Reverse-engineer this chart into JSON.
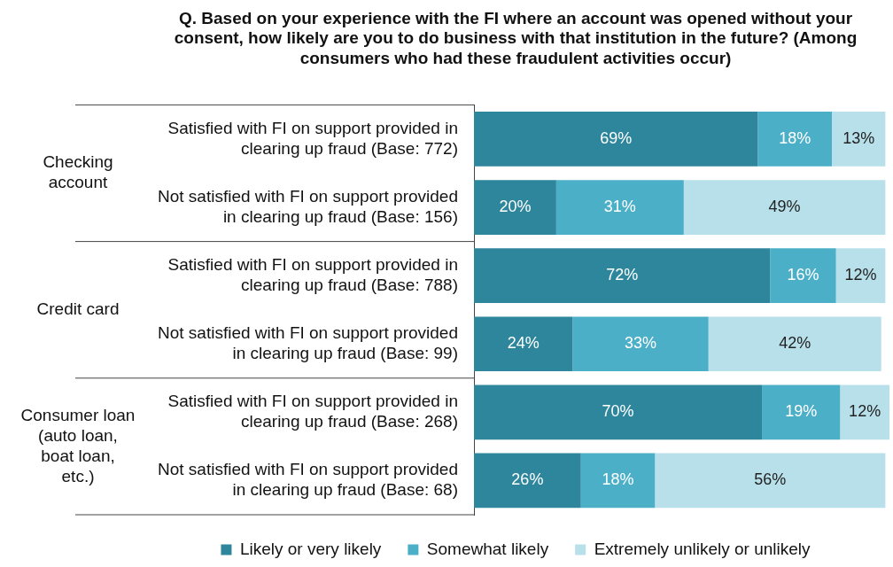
{
  "chart_data": {
    "type": "bar",
    "orientation": "horizontal",
    "stacked": true,
    "title": "Q. Based on your experience with the FI where an account was opened without your consent, how likely are you to do business with that institution in the future? (Among consumers who had these fraudulent activities occur)",
    "categories": [
      "Satisfied with FI on support provided in clearing up fraud (Base: 772)",
      "Not satisfied with FI on support provided in clearing up fraud (Base: 156)",
      "Satisfied with FI on support provided in clearing up fraud (Base: 788)",
      "Not satisfied with FI on support provided in clearing up fraud (Base: 99)",
      "Satisfied with FI on support provided in clearing up fraud (Base: 268)",
      "Not satisfied with FI on support provided in clearing up fraud (Base: 68)"
    ],
    "series": [
      {
        "name": "Likely or very likely",
        "color": "#2e869c",
        "values": [
          69,
          20,
          72,
          24,
          70,
          26
        ],
        "value_labels": [
          "69%",
          "20%",
          "72%",
          "24%",
          "70%",
          "26%"
        ]
      },
      {
        "name": "Somewhat likely",
        "color": "#4bafc8",
        "values": [
          18,
          31,
          16,
          33,
          19,
          18
        ],
        "value_labels": [
          "18%",
          "31%",
          "16%",
          "33%",
          "19%",
          "18%"
        ]
      },
      {
        "name": "Extremely unlikely or unlikely",
        "color": "#b8e0ea",
        "values": [
          13,
          49,
          12,
          42,
          12,
          56
        ],
        "value_labels": [
          "13%",
          "49%",
          "12%",
          "42%",
          "12%",
          "56%"
        ]
      }
    ],
    "annotations": [
      "Checking account",
      "Credit card",
      "Consumer loan (auto loan, boat loan, etc.)"
    ],
    "xlim": [
      0,
      101
    ],
    "tick_labels": "y",
    "grid": false,
    "legend": "bottom"
  }
}
